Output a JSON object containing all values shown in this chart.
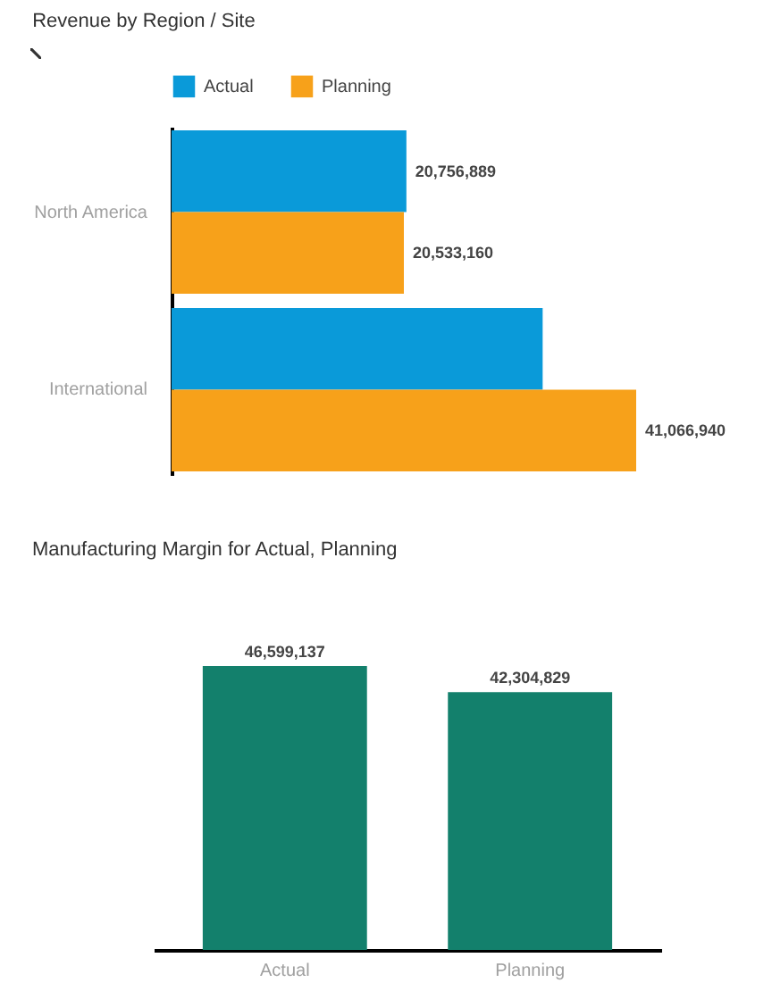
{
  "chart_data": [
    {
      "type": "bar",
      "title": "Revenue by Region / Site",
      "orientation": "horizontal",
      "categories": [
        "North America",
        "International"
      ],
      "legend": "top",
      "tick_labels": "y",
      "series": [
        {
          "name": "Actual",
          "color": "#0a9ad9",
          "values": [
            20756889,
            32800000
          ],
          "value_labels": [
            "20,756,889",
            null
          ]
        },
        {
          "name": "Planning",
          "color": "#f7a11a",
          "values": [
            20533160,
            41066940
          ],
          "value_labels": [
            "20,533,160",
            "41,066,940"
          ]
        }
      ]
    },
    {
      "type": "bar",
      "title": "Manufacturing Margin for Actual, Planning",
      "categories": [
        "Actual",
        "Planning"
      ],
      "tick_labels": "x",
      "series": [
        {
          "color": "#13806c",
          "values": [
            46599137,
            42304829
          ],
          "value_labels": [
            "46,599,137",
            "42,304,829"
          ]
        }
      ]
    }
  ]
}
